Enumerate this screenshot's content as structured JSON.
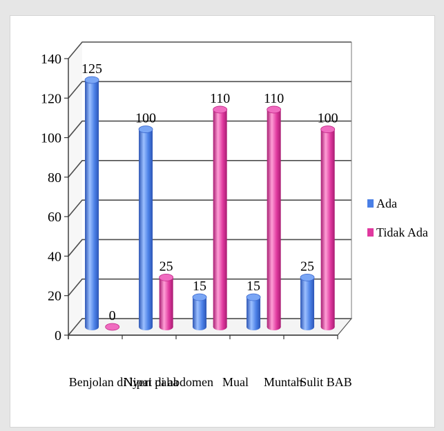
{
  "chart_data": {
    "type": "bar",
    "categories": [
      "Benjolan di lipat paha",
      "Nyeri di abdomen",
      "Mual",
      "Muntah",
      "Sulit BAB"
    ],
    "series": [
      {
        "name": "Ada",
        "values": [
          125,
          100,
          15,
          15,
          25
        ],
        "color": "#4a7fe6"
      },
      {
        "name": "Tidak Ada",
        "values": [
          0,
          25,
          110,
          110,
          100
        ],
        "color": "#e0399f"
      }
    ],
    "data_labels": [
      [
        "125",
        "100",
        "15",
        "15",
        "25"
      ],
      [
        "0",
        "25",
        "110",
        "110",
        "100"
      ]
    ],
    "y_ticks": [
      "0",
      "20",
      "40",
      "60",
      "80",
      "100",
      "120",
      "140"
    ],
    "ylim": [
      0,
      140
    ],
    "grid": true,
    "legend_position": "right",
    "style": "3d-cylinder"
  }
}
